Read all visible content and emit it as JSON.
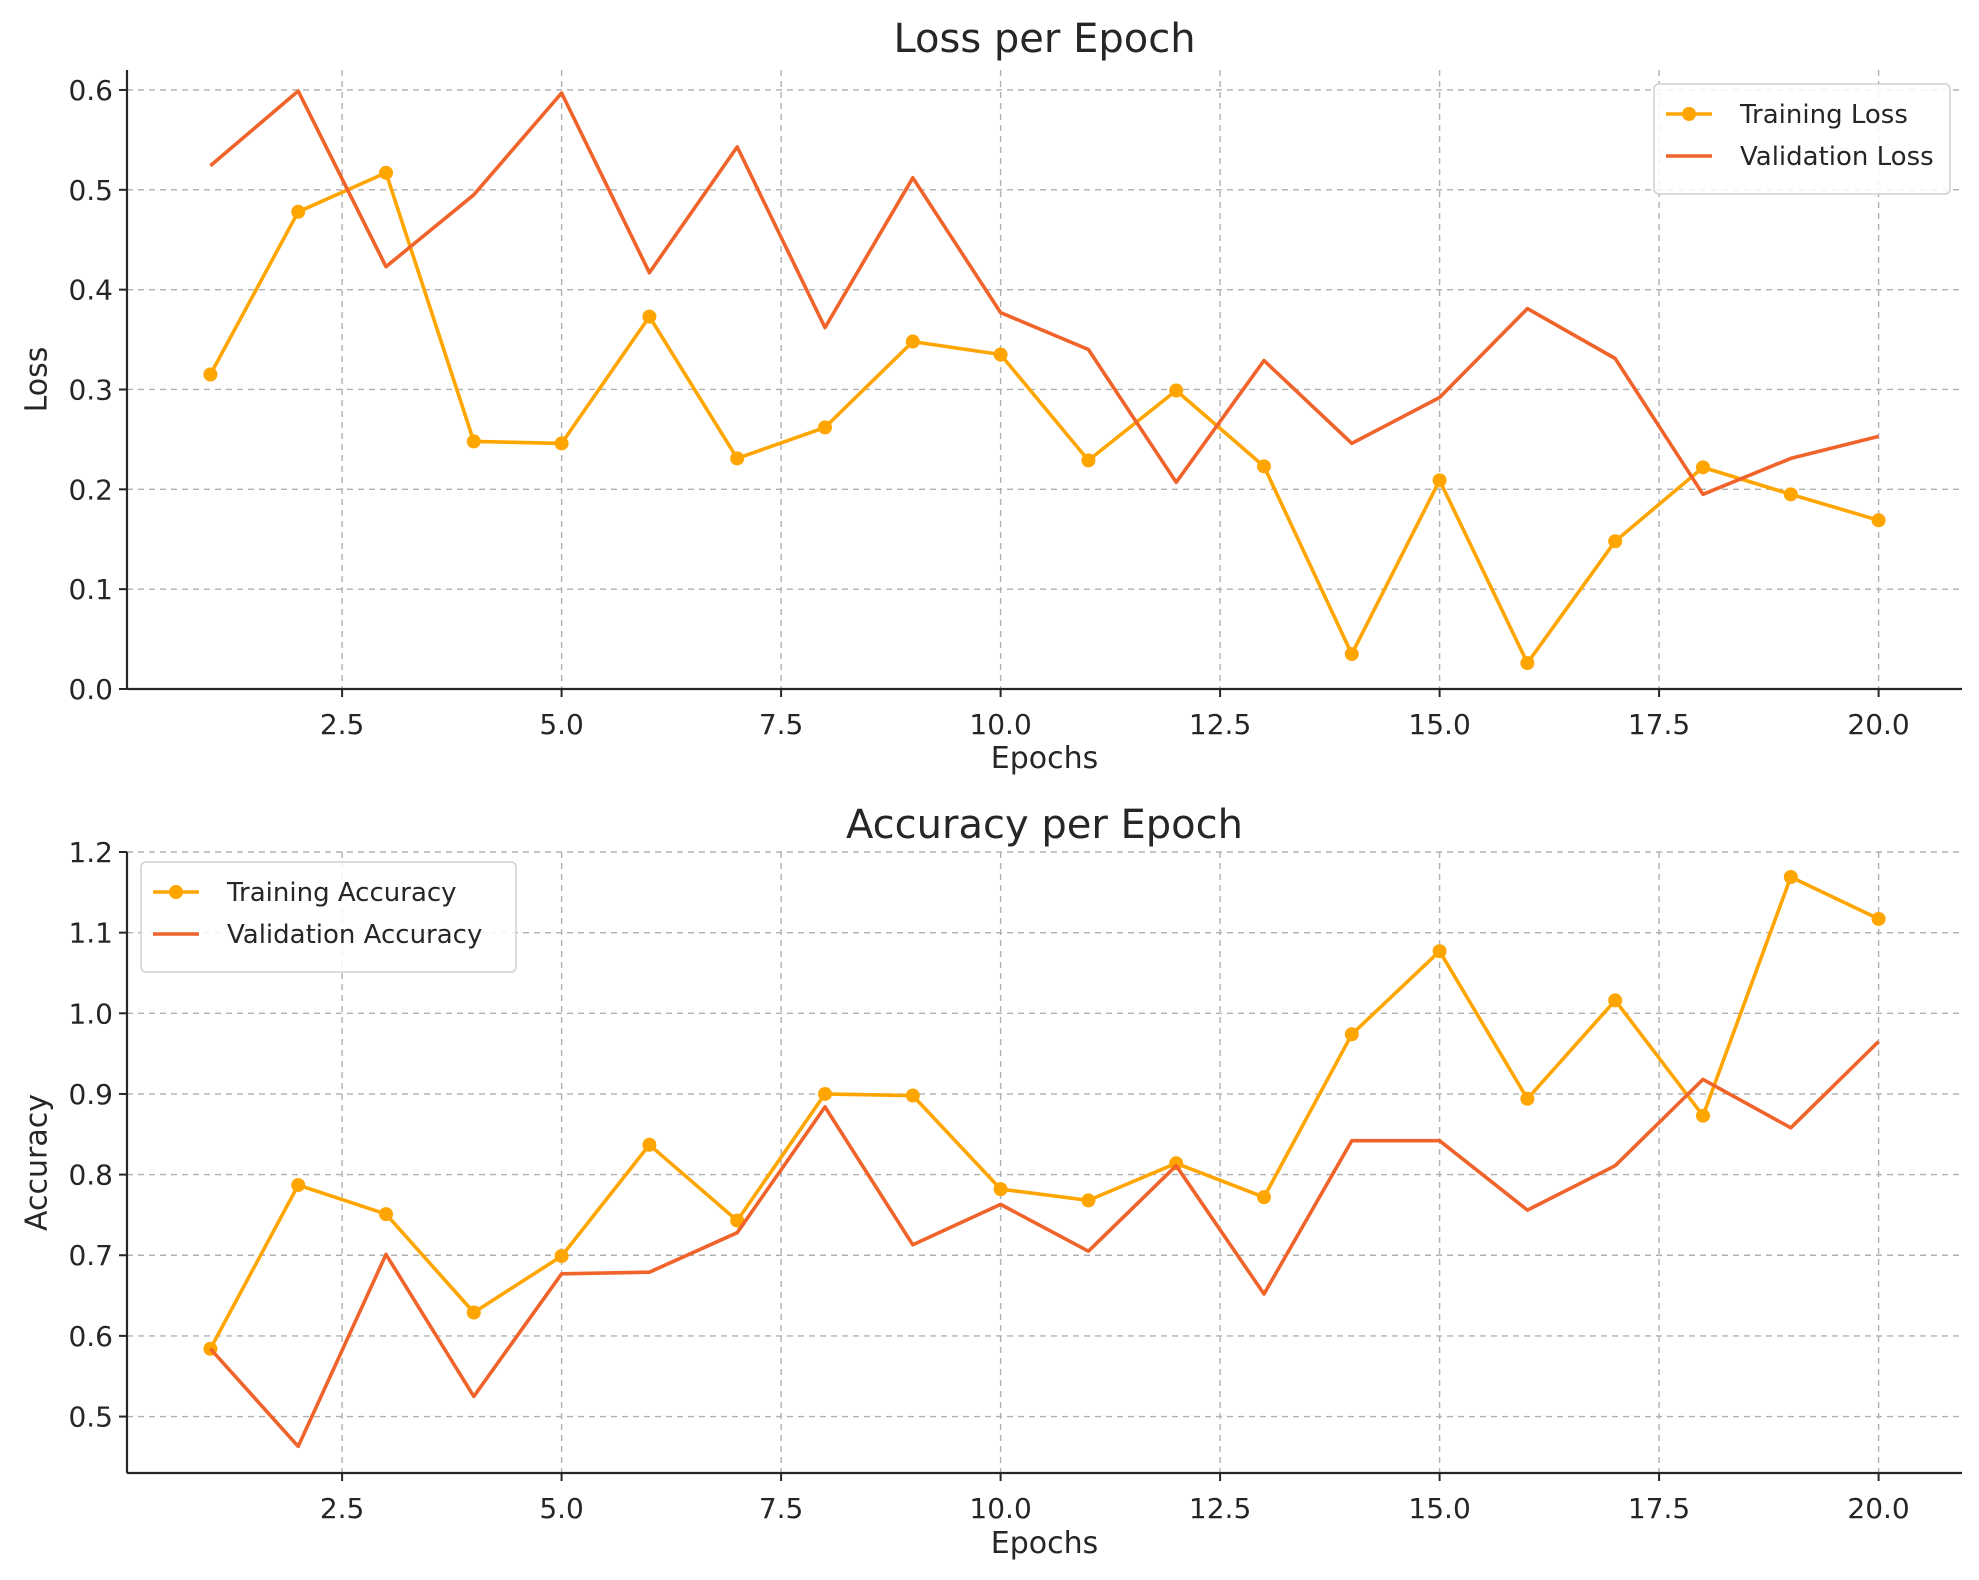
{
  "colors": {
    "training": "#FFA500",
    "validation": "#F0632A"
  },
  "chart_data": [
    {
      "type": "line",
      "title": "Loss per Epoch",
      "xlabel": "Epochs",
      "ylabel": "Loss",
      "xlim": [
        0.05,
        20.95
      ],
      "ylim": [
        0,
        0.62
      ],
      "x_ticks": [
        2.5,
        5.0,
        7.5,
        10.0,
        12.5,
        15.0,
        17.5,
        20.0
      ],
      "y_ticks": [
        0.0,
        0.1,
        0.2,
        0.3,
        0.4,
        0.5,
        0.6
      ],
      "grid": true,
      "legend_position": "top-right",
      "x": [
        1,
        2,
        3,
        4,
        5,
        6,
        7,
        8,
        9,
        10,
        11,
        12,
        13,
        14,
        15,
        16,
        17,
        18,
        19,
        20
      ],
      "series": [
        {
          "name": "Training Loss",
          "marker": "circle",
          "color_key": "training",
          "values": [
            0.315,
            0.478,
            0.517,
            0.248,
            0.246,
            0.373,
            0.231,
            0.262,
            0.348,
            0.335,
            0.229,
            0.299,
            0.223,
            0.035,
            0.209,
            0.026,
            0.148,
            0.222,
            0.195,
            0.169
          ]
        },
        {
          "name": "Validation Loss",
          "marker": "none",
          "color_key": "validation",
          "values": [
            0.524,
            0.599,
            0.423,
            0.495,
            0.597,
            0.417,
            0.543,
            0.362,
            0.512,
            0.377,
            0.34,
            0.207,
            0.329,
            0.246,
            0.292,
            0.381,
            0.331,
            0.195,
            0.231,
            0.253
          ]
        }
      ]
    },
    {
      "type": "line",
      "title": "Accuracy per Epoch",
      "xlabel": "Epochs",
      "ylabel": "Accuracy",
      "xlim": [
        0.05,
        20.95
      ],
      "ylim": [
        0.43,
        1.2
      ],
      "x_ticks": [
        2.5,
        5.0,
        7.5,
        10.0,
        12.5,
        15.0,
        17.5,
        20.0
      ],
      "y_ticks": [
        0.5,
        0.6,
        0.7,
        0.8,
        0.9,
        1.0,
        1.1,
        1.2
      ],
      "grid": true,
      "legend_position": "top-left",
      "x": [
        1,
        2,
        3,
        4,
        5,
        6,
        7,
        8,
        9,
        10,
        11,
        12,
        13,
        14,
        15,
        16,
        17,
        18,
        19,
        20
      ],
      "series": [
        {
          "name": "Training Accuracy",
          "marker": "circle",
          "color_key": "training",
          "values": [
            0.584,
            0.787,
            0.751,
            0.629,
            0.699,
            0.837,
            0.743,
            0.9,
            0.898,
            0.782,
            0.768,
            0.814,
            0.772,
            0.974,
            1.077,
            0.894,
            1.016,
            0.873,
            1.169,
            1.117
          ]
        },
        {
          "name": "Validation Accuracy",
          "marker": "none",
          "color_key": "validation",
          "values": [
            0.584,
            0.463,
            0.701,
            0.525,
            0.677,
            0.679,
            0.728,
            0.884,
            0.713,
            0.763,
            0.705,
            0.811,
            0.652,
            0.842,
            0.842,
            0.756,
            0.811,
            0.918,
            0.858,
            0.965
          ]
        }
      ]
    }
  ]
}
